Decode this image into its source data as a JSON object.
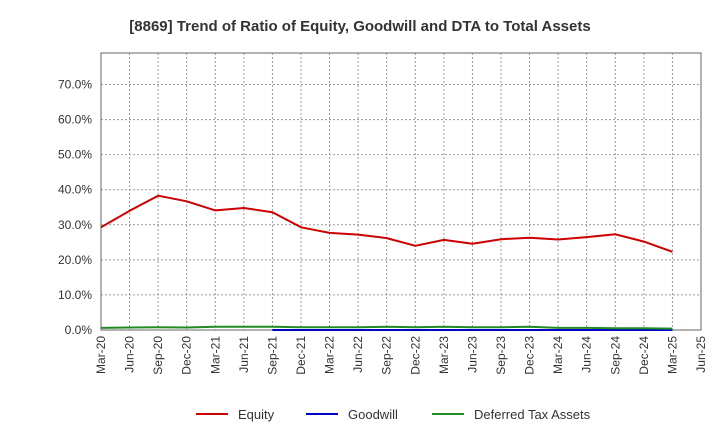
{
  "chart_data": {
    "type": "line",
    "title": "[8869]  Trend of Ratio of Equity, Goodwill and DTA to Total Assets",
    "xlabel": "",
    "ylabel": "",
    "ylim": [
      0,
      0.79
    ],
    "y_ticks": [
      0,
      0.1,
      0.2,
      0.3,
      0.4,
      0.5,
      0.6,
      0.7
    ],
    "y_tick_labels": [
      "0.0%",
      "10.0%",
      "20.0%",
      "30.0%",
      "40.0%",
      "50.0%",
      "60.0%",
      "70.0%"
    ],
    "categories": [
      "Mar-20",
      "Jun-20",
      "Sep-20",
      "Dec-20",
      "Mar-21",
      "Jun-21",
      "Sep-21",
      "Dec-21",
      "Mar-22",
      "Jun-22",
      "Sep-22",
      "Dec-22",
      "Mar-23",
      "Jun-23",
      "Sep-23",
      "Dec-23",
      "Mar-24",
      "Jun-24",
      "Sep-24",
      "Dec-24",
      "Mar-25",
      "Jun-25"
    ],
    "grid": true,
    "legend_position": "bottom",
    "series": [
      {
        "name": "Equity",
        "color": "#cc0000",
        "values": [
          0.293,
          0.34,
          0.383,
          0.367,
          0.341,
          0.348,
          0.336,
          0.293,
          0.277,
          0.272,
          0.262,
          0.24,
          0.257,
          0.246,
          0.259,
          0.263,
          0.258,
          0.265,
          0.273,
          0.252,
          0.223,
          null
        ]
      },
      {
        "name": "Goodwill",
        "color": "#0000cc",
        "values": [
          null,
          null,
          null,
          null,
          null,
          null,
          0.0,
          0.0,
          0.0,
          0.0,
          0.0,
          0.0,
          0.0,
          0.0,
          0.0,
          0.0,
          0.0,
          0.0,
          0.0,
          0.0,
          0.0,
          null
        ]
      },
      {
        "name": "Deferred Tax Assets",
        "color": "#228b22",
        "values": [
          0.006,
          0.007,
          0.008,
          0.007,
          0.009,
          0.009,
          0.009,
          0.008,
          0.008,
          0.008,
          0.009,
          0.008,
          0.009,
          0.008,
          0.008,
          0.009,
          0.006,
          0.006,
          0.005,
          0.005,
          0.004,
          null
        ]
      }
    ]
  }
}
